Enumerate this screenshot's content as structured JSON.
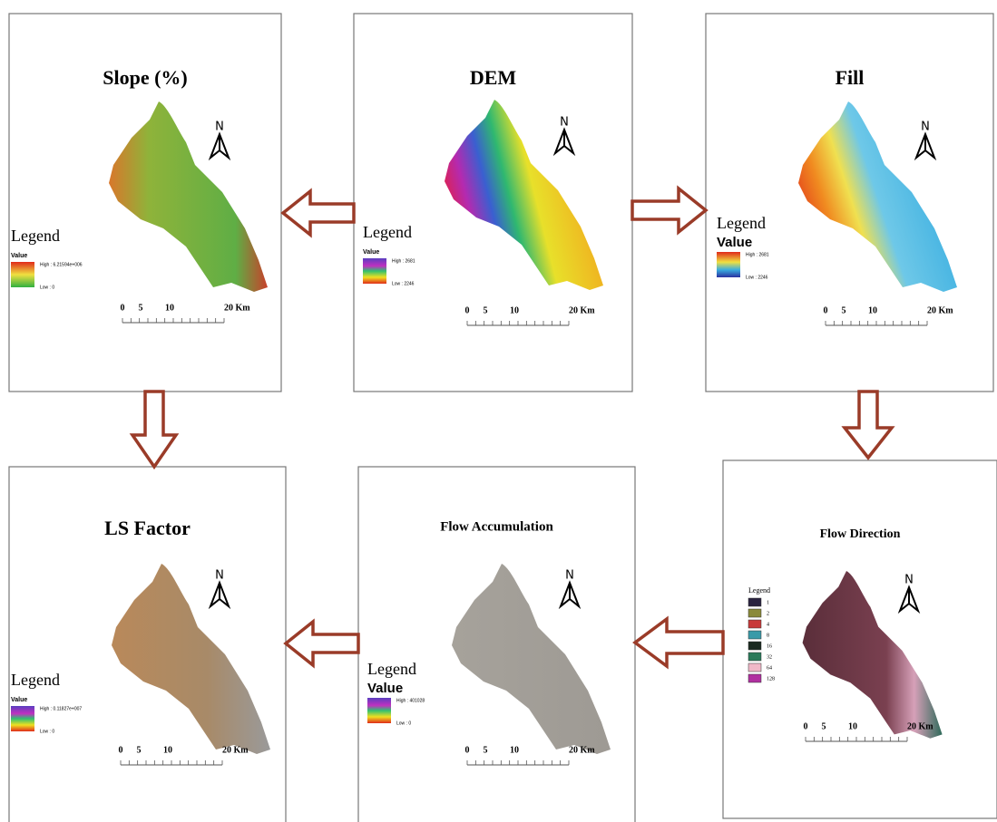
{
  "panels": [
    {
      "title": "Slope (%)",
      "north": "N",
      "legend_title": "Legend",
      "value_label": "Value",
      "high": "High : 6.21594e+006",
      "low": "Low : 0",
      "scale": [
        "0",
        "5",
        "10",
        "20 Km"
      ]
    },
    {
      "title": "DEM",
      "north": "N",
      "legend_title": "Legend",
      "value_label": "Value",
      "high": "High : 2681",
      "low": "Low : 2246",
      "scale": [
        "0",
        "5",
        "10",
        "20 Km"
      ]
    },
    {
      "title": "Fill",
      "north": "N",
      "legend_title": "Legend",
      "value_label": "Value",
      "high": "High : 2681",
      "low": "Low : 2246",
      "scale": [
        "0",
        "5",
        "10",
        "20 Km"
      ]
    },
    {
      "title": "LS Factor",
      "north": "N",
      "legend_title": "Legend",
      "value_label": "Value",
      "high": "High : 0.11827e+007",
      "low": "Low : 0",
      "scale": [
        "0",
        "5",
        "10",
        "20 Km"
      ]
    },
    {
      "title": "Flow Accumulation",
      "north": "N",
      "legend_title": "Legend",
      "value_label": "Value",
      "high": "High : 401028",
      "low": "Low : 0",
      "scale": [
        "0",
        "5",
        "10",
        "20 Km"
      ]
    },
    {
      "title": "Flow Direction",
      "north": "N",
      "legend_title": "Legend",
      "items": [
        "1",
        "2",
        "4",
        "8",
        "16",
        "32",
        "64",
        "128"
      ],
      "scale": [
        "0",
        "5",
        "10",
        "20 Km"
      ]
    }
  ]
}
